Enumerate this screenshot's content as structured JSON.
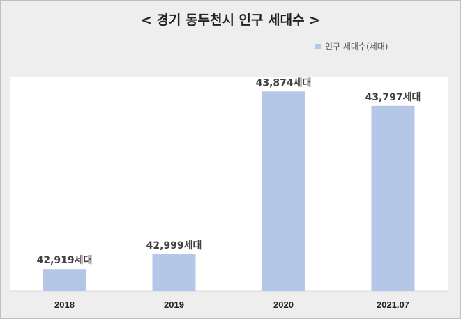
{
  "chart_data": {
    "type": "bar",
    "title": "< 경기 동두천시 인구 세대수 >",
    "categories": [
      "2018",
      "2019",
      "2020",
      "2021.07"
    ],
    "series": [
      {
        "name": "인구 세대수(세대)",
        "values": [
          42919,
          42999,
          43874,
          43797
        ],
        "labels": [
          "42,919세대",
          "42,999세대",
          "43,874세대",
          "43,797세대"
        ],
        "color": "#b4c7e7"
      }
    ],
    "ylim": [
      42800,
      43950
    ],
    "legend_position": "top-right",
    "grid": false
  }
}
